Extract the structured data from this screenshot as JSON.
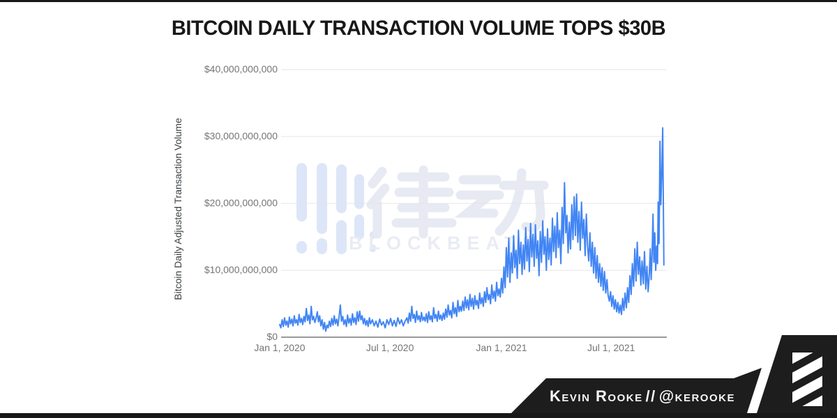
{
  "title": "BITCOIN DAILY TRANSACTION VOLUME TOPS $30B",
  "chart_data": {
    "type": "line",
    "title": "BITCOIN DAILY TRANSACTION VOLUME TOPS $30B",
    "xlabel": "",
    "ylabel": "Bitcoin Daily Adjusted Transaction Volume",
    "ylim": [
      0,
      40000000000
    ],
    "grid": true,
    "legend": false,
    "units": "billions USD",
    "x_unit": "days since Jan 1, 2020",
    "x_ticks": [
      "Jan 1, 2020",
      "Jul 1, 2020",
      "Jan 1, 2021",
      "Jul 1, 2021"
    ],
    "x_tick_days": [
      0,
      182,
      366,
      547
    ],
    "y_ticks": [
      "$0",
      "$10,000,000,000",
      "$20,000,000,000",
      "$30,000,000,000",
      "$40,000,000,000"
    ],
    "y_tick_values": [
      0,
      10,
      20,
      30,
      40
    ],
    "line_color": "#4285f4",
    "series": [
      {
        "name": "Bitcoin Daily Adjusted Transaction Volume",
        "points": [
          [
            0,
            1.9
          ],
          [
            2,
            1.4
          ],
          [
            4,
            2.6
          ],
          [
            6,
            1.6
          ],
          [
            8,
            2.9
          ],
          [
            10,
            1.8
          ],
          [
            12,
            2.4
          ],
          [
            14,
            1.5
          ],
          [
            16,
            3.0
          ],
          [
            18,
            2.0
          ],
          [
            20,
            2.7
          ],
          [
            22,
            1.7
          ],
          [
            24,
            3.2
          ],
          [
            26,
            2.1
          ],
          [
            28,
            2.6
          ],
          [
            30,
            1.8
          ],
          [
            32,
            3.4
          ],
          [
            34,
            2.2
          ],
          [
            36,
            2.8
          ],
          [
            38,
            1.9
          ],
          [
            40,
            3.1
          ],
          [
            42,
            2.3
          ],
          [
            44,
            4.3
          ],
          [
            46,
            2.5
          ],
          [
            48,
            3.3
          ],
          [
            50,
            2.0
          ],
          [
            52,
            4.6
          ],
          [
            54,
            2.6
          ],
          [
            56,
            3.1
          ],
          [
            58,
            2.2
          ],
          [
            60,
            2.8
          ],
          [
            62,
            3.8
          ],
          [
            64,
            2.3
          ],
          [
            66,
            3.2
          ],
          [
            68,
            1.7
          ],
          [
            70,
            2.6
          ],
          [
            72,
            1.2
          ],
          [
            74,
            2.2
          ],
          [
            76,
            0.9
          ],
          [
            78,
            1.8
          ],
          [
            80,
            1.4
          ],
          [
            82,
            2.4
          ],
          [
            84,
            1.6
          ],
          [
            86,
            2.8
          ],
          [
            88,
            1.8
          ],
          [
            90,
            3.2
          ],
          [
            92,
            2.0
          ],
          [
            94,
            2.7
          ],
          [
            96,
            1.7
          ],
          [
            98,
            3.0
          ],
          [
            100,
            4.8
          ],
          [
            102,
            2.4
          ],
          [
            104,
            3.1
          ],
          [
            106,
            1.9
          ],
          [
            108,
            2.6
          ],
          [
            110,
            1.6
          ],
          [
            112,
            3.3
          ],
          [
            114,
            2.1
          ],
          [
            116,
            2.8
          ],
          [
            118,
            1.8
          ],
          [
            120,
            3.5
          ],
          [
            122,
            2.2
          ],
          [
            124,
            2.9
          ],
          [
            126,
            1.9
          ],
          [
            128,
            3.8
          ],
          [
            130,
            2.4
          ],
          [
            132,
            3.9
          ],
          [
            134,
            2.6
          ],
          [
            136,
            3.2
          ],
          [
            138,
            2.0
          ],
          [
            140,
            2.8
          ],
          [
            142,
            1.8
          ],
          [
            144,
            2.5
          ],
          [
            146,
            1.6
          ],
          [
            148,
            2.9
          ],
          [
            150,
            2.0
          ],
          [
            153,
            2.6
          ],
          [
            156,
            1.7
          ],
          [
            159,
            2.4
          ],
          [
            162,
            1.5
          ],
          [
            165,
            2.7
          ],
          [
            168,
            1.8
          ],
          [
            171,
            2.3
          ],
          [
            174,
            1.4
          ],
          [
            177,
            2.6
          ],
          [
            180,
            1.9
          ],
          [
            183,
            2.8
          ],
          [
            186,
            1.7
          ],
          [
            189,
            2.5
          ],
          [
            192,
            1.6
          ],
          [
            195,
            2.9
          ],
          [
            198,
            2.0
          ],
          [
            201,
            2.6
          ],
          [
            204,
            1.7
          ],
          [
            207,
            2.4
          ],
          [
            210,
            2.9
          ],
          [
            212,
            2.1
          ],
          [
            214,
            3.6
          ],
          [
            216,
            2.4
          ],
          [
            218,
            4.6
          ],
          [
            220,
            2.8
          ],
          [
            222,
            3.4
          ],
          [
            224,
            2.2
          ],
          [
            226,
            3.9
          ],
          [
            228,
            2.6
          ],
          [
            230,
            3.2
          ],
          [
            232,
            2.3
          ],
          [
            234,
            3.7
          ],
          [
            236,
            2.5
          ],
          [
            238,
            3.0
          ],
          [
            240,
            2.4
          ],
          [
            242,
            3.5
          ],
          [
            244,
            2.2
          ],
          [
            246,
            3.8
          ],
          [
            248,
            2.6
          ],
          [
            250,
            3.2
          ],
          [
            252,
            2.3
          ],
          [
            254,
            4.4
          ],
          [
            256,
            2.8
          ],
          [
            258,
            3.4
          ],
          [
            260,
            2.4
          ],
          [
            262,
            3.9
          ],
          [
            264,
            2.7
          ],
          [
            266,
            3.3
          ],
          [
            268,
            2.5
          ],
          [
            270,
            3.6
          ],
          [
            272,
            2.7
          ],
          [
            274,
            4.2
          ],
          [
            276,
            3.0
          ],
          [
            278,
            4.8
          ],
          [
            280,
            3.3
          ],
          [
            282,
            4.0
          ],
          [
            284,
            2.9
          ],
          [
            286,
            5.2
          ],
          [
            288,
            3.5
          ],
          [
            290,
            4.4
          ],
          [
            292,
            3.1
          ],
          [
            294,
            5.5
          ],
          [
            296,
            3.8
          ],
          [
            298,
            4.6
          ],
          [
            300,
            3.9
          ],
          [
            302,
            5.4
          ],
          [
            304,
            4.0
          ],
          [
            306,
            6.0
          ],
          [
            308,
            4.4
          ],
          [
            310,
            5.6
          ],
          [
            312,
            4.1
          ],
          [
            314,
            6.4
          ],
          [
            316,
            4.6
          ],
          [
            318,
            5.8
          ],
          [
            320,
            4.2
          ],
          [
            322,
            6.2
          ],
          [
            324,
            4.8
          ],
          [
            326,
            5.5
          ],
          [
            328,
            4.3
          ],
          [
            330,
            6.6
          ],
          [
            332,
            5.0
          ],
          [
            334,
            5.9
          ],
          [
            336,
            4.6
          ],
          [
            338,
            6.8
          ],
          [
            340,
            5.2
          ],
          [
            342,
            7.4
          ],
          [
            344,
            5.6
          ],
          [
            346,
            6.4
          ],
          [
            348,
            5.0
          ],
          [
            350,
            7.8
          ],
          [
            352,
            5.8
          ],
          [
            354,
            6.9
          ],
          [
            356,
            5.4
          ],
          [
            358,
            8.2
          ],
          [
            360,
            6.2
          ],
          [
            362,
            7.2
          ],
          [
            364,
            6.0
          ],
          [
            366,
            8.8
          ],
          [
            368,
            6.6
          ],
          [
            370,
            10.5
          ],
          [
            372,
            7.4
          ],
          [
            374,
            13.4
          ],
          [
            376,
            9.0
          ],
          [
            378,
            14.8
          ],
          [
            380,
            8.2
          ],
          [
            382,
            12.6
          ],
          [
            384,
            9.6
          ],
          [
            386,
            15.2
          ],
          [
            388,
            10.4
          ],
          [
            390,
            13.0
          ],
          [
            392,
            8.8
          ],
          [
            394,
            16.0
          ],
          [
            396,
            11.0
          ],
          [
            398,
            14.2
          ],
          [
            400,
            9.4
          ],
          [
            402,
            13.8
          ],
          [
            404,
            10.2
          ],
          [
            406,
            16.4
          ],
          [
            408,
            11.4
          ],
          [
            410,
            14.6
          ],
          [
            412,
            9.8
          ],
          [
            414,
            17.0
          ],
          [
            416,
            12.0
          ],
          [
            418,
            15.4
          ],
          [
            420,
            10.6
          ],
          [
            422,
            16.8
          ],
          [
            424,
            11.8
          ],
          [
            426,
            14.4
          ],
          [
            428,
            9.2
          ],
          [
            430,
            15.8
          ],
          [
            432,
            11.2
          ],
          [
            434,
            17.4
          ],
          [
            436,
            12.4
          ],
          [
            438,
            15.0
          ],
          [
            440,
            10.0
          ],
          [
            442,
            16.2
          ],
          [
            444,
            11.6
          ],
          [
            446,
            14.8
          ],
          [
            448,
            10.8
          ],
          [
            450,
            17.8
          ],
          [
            452,
            12.8
          ],
          [
            454,
            16.6
          ],
          [
            456,
            11.9
          ],
          [
            458,
            18.6
          ],
          [
            460,
            13.4
          ],
          [
            462,
            16.0
          ],
          [
            464,
            11.0
          ],
          [
            466,
            19.4
          ],
          [
            468,
            14.0
          ],
          [
            470,
            23.1
          ],
          [
            472,
            15.6
          ],
          [
            474,
            18.2
          ],
          [
            476,
            12.6
          ],
          [
            478,
            17.2
          ],
          [
            480,
            13.2
          ],
          [
            482,
            19.8
          ],
          [
            484,
            14.6
          ],
          [
            486,
            21.0
          ],
          [
            488,
            15.2
          ],
          [
            490,
            21.4
          ],
          [
            492,
            14.2
          ],
          [
            494,
            18.8
          ],
          [
            496,
            13.0
          ],
          [
            498,
            20.2
          ],
          [
            500,
            14.8
          ],
          [
            502,
            17.6
          ],
          [
            504,
            12.2
          ],
          [
            506,
            18.4
          ],
          [
            508,
            13.6
          ],
          [
            510,
            11.4
          ],
          [
            512,
            15.6
          ],
          [
            514,
            10.6
          ],
          [
            516,
            14.2
          ],
          [
            518,
            9.6
          ],
          [
            520,
            13.4
          ],
          [
            522,
            8.8
          ],
          [
            524,
            12.2
          ],
          [
            526,
            8.2
          ],
          [
            528,
            11.0
          ],
          [
            530,
            7.6
          ],
          [
            532,
            10.4
          ],
          [
            534,
            7.0
          ],
          [
            536,
            9.8
          ],
          [
            538,
            6.6
          ],
          [
            540,
            8.6
          ],
          [
            542,
            6.2
          ],
          [
            544,
            5.4
          ],
          [
            546,
            6.8
          ],
          [
            548,
            4.6
          ],
          [
            550,
            6.2
          ],
          [
            552,
            4.2
          ],
          [
            554,
            5.6
          ],
          [
            556,
            3.8
          ],
          [
            558,
            5.2
          ],
          [
            560,
            3.6
          ],
          [
            562,
            4.8
          ],
          [
            564,
            3.4
          ],
          [
            566,
            5.8
          ],
          [
            568,
            4.0
          ],
          [
            570,
            6.6
          ],
          [
            572,
            4.4
          ],
          [
            574,
            7.4
          ],
          [
            576,
            5.2
          ],
          [
            578,
            9.2
          ],
          [
            580,
            6.4
          ],
          [
            582,
            11.0
          ],
          [
            584,
            7.6
          ],
          [
            586,
            13.2
          ],
          [
            588,
            8.4
          ],
          [
            590,
            14.2
          ],
          [
            592,
            9.4
          ],
          [
            594,
            12.0
          ],
          [
            596,
            7.8
          ],
          [
            598,
            11.4
          ],
          [
            600,
            8.0
          ],
          [
            602,
            12.8
          ],
          [
            604,
            7.2
          ],
          [
            606,
            10.6
          ],
          [
            608,
            6.8
          ],
          [
            610,
            9.6
          ],
          [
            611.5,
            13.2
          ],
          [
            613,
            8.6
          ],
          [
            614.5,
            12.4
          ],
          [
            616,
            18.4
          ],
          [
            617.5,
            11.2
          ],
          [
            619,
            15.6
          ],
          [
            620.5,
            10.0
          ],
          [
            622,
            13.6
          ],
          [
            623.5,
            11.0
          ],
          [
            624.5,
            20.2
          ],
          [
            626,
            14.0
          ],
          [
            627.5,
            29.3
          ],
          [
            629,
            19.8
          ],
          [
            630.5,
            24.5
          ],
          [
            632,
            31.3
          ],
          [
            634,
            10.8
          ]
        ]
      }
    ]
  },
  "watermark": {
    "cjk": "律动",
    "text": "BLOCKBEATS"
  },
  "footer": {
    "author": "Kevin Rooke",
    "separator": "//",
    "handle": "@kerooke"
  },
  "colors": {
    "line": "#4285f4",
    "gridline": "#e4e4e4",
    "axis_baseline": "#787878",
    "tick_label": "#757575",
    "banner": "#1d1d1d",
    "watermark_bars": "#dde6f8",
    "watermark_glyphs": "#e7eaf2",
    "watermark_text": "#e9ecf3"
  }
}
